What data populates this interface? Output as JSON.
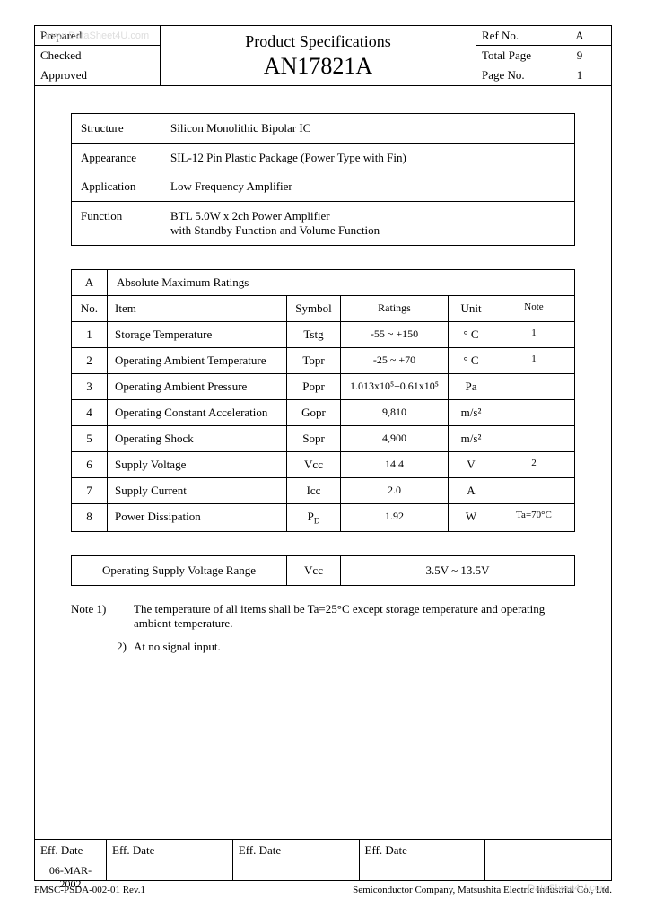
{
  "watermark_top": "www.DataSheet4U.com",
  "watermark_bottom": "DataSheet4U.com",
  "header": {
    "left": [
      "Prepared",
      "Checked",
      "Approved"
    ],
    "title1": "Product Specifications",
    "title2": "AN17821A",
    "right": [
      {
        "label": "Ref No.",
        "value": "A"
      },
      {
        "label": "Total Page",
        "value": "9"
      },
      {
        "label": "Page No.",
        "value": "1"
      }
    ]
  },
  "info": {
    "rows": [
      {
        "label": "Structure",
        "value": "Silicon Monolithic Bipolar IC"
      },
      {
        "label": "Appearance",
        "value": "SIL-12 Pin Plastic Package (Power Type with Fin)"
      },
      {
        "label": "Application",
        "value": "Low Frequency Amplifier"
      },
      {
        "label": "Function",
        "value": "BTL 5.0W x 2ch Power Amplifier\nwith Standby Function and Volume Function"
      }
    ]
  },
  "ratings": {
    "section_letter": "A",
    "section_title": "Absolute Maximum Ratings",
    "columns": [
      "No.",
      "Item",
      "Symbol",
      "Ratings",
      "Unit",
      "Note"
    ],
    "rows": [
      {
        "no": "1",
        "item": "Storage Temperature",
        "symbol": "Tstg",
        "rating": "-55 ~ +150",
        "unit": "° C",
        "note": "1"
      },
      {
        "no": "2",
        "item": "Operating Ambient Temperature",
        "symbol": "Topr",
        "rating": "-25 ~ +70",
        "unit": "° C",
        "note": "1"
      },
      {
        "no": "3",
        "item": "Operating Ambient Pressure",
        "symbol": "Popr",
        "rating": "1.013x10⁵±0.61x10⁵",
        "unit": "Pa",
        "note": ""
      },
      {
        "no": "4",
        "item": "Operating Constant Acceleration",
        "symbol": "Gopr",
        "rating": "9,810",
        "unit": "m/s²",
        "note": ""
      },
      {
        "no": "5",
        "item": "Operating Shock",
        "symbol": "Sopr",
        "rating": "4,900",
        "unit": "m/s²",
        "note": ""
      },
      {
        "no": "6",
        "item": "Supply Voltage",
        "symbol": "Vcc",
        "rating": "14.4",
        "unit": "V",
        "note": "2"
      },
      {
        "no": "7",
        "item": "Supply Current",
        "symbol": "Icc",
        "rating": "2.0",
        "unit": "A",
        "note": ""
      },
      {
        "no": "8",
        "item": "Power Dissipation",
        "symbol": "P_D",
        "rating": "1.92",
        "unit": "W",
        "note": "Ta=70°C"
      }
    ]
  },
  "supply_range": {
    "label": "Operating Supply Voltage Range",
    "symbol": "Vcc",
    "value": "3.5V ~ 13.5V"
  },
  "notes": [
    {
      "n": "Note 1)",
      "t": "The temperature of all items shall be Ta=25°C except storage temperature and operating ambient temperature."
    },
    {
      "n": "2)",
      "t": "At no signal input."
    }
  ],
  "footer": {
    "eff_label": "Eff. Date",
    "eff_cols": [
      "Eff. Date",
      "Eff. Date",
      "Eff. Date",
      ""
    ],
    "date": "06-MAR-2002",
    "form": "FMSC-PSDA-002-01 Rev.1",
    "company": "Semiconductor Company, Matsushita Electric Industrial Co., Ltd."
  }
}
